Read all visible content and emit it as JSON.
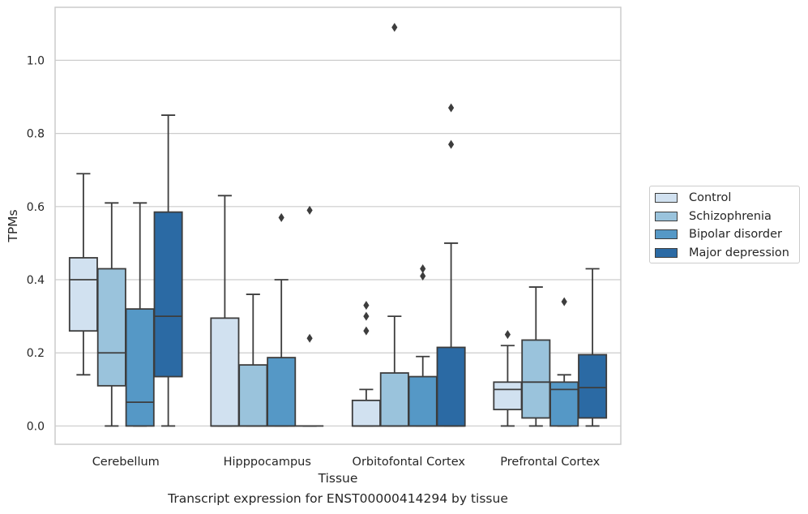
{
  "chart_data": {
    "type": "box",
    "xlabel": "Tissue",
    "ylabel": "TPMs",
    "caption": "Transcript expression for ENST00000414294 by tissue",
    "ylim": [
      -0.05,
      1.145
    ],
    "yticks": [
      0.0,
      0.2,
      0.4,
      0.6,
      0.8,
      1.0
    ],
    "ytick_labels": [
      "0.0",
      "0.2",
      "0.4",
      "0.6",
      "0.8",
      "1.0"
    ],
    "grid": "horizontal",
    "legend_position": "right",
    "categories": [
      "Cerebellum",
      "Hipppocampus",
      "Orbitofontal Cortex",
      "Prefrontal Cortex"
    ],
    "series": [
      {
        "name": "Control",
        "color": "#d1e1f0",
        "boxes": [
          {
            "whislo": 0.14,
            "q1": 0.26,
            "med": 0.4,
            "q3": 0.46,
            "whishi": 0.69,
            "fliers": []
          },
          {
            "whislo": 0.0,
            "q1": 0.0,
            "med": 0.0,
            "q3": 0.295,
            "whishi": 0.63,
            "fliers": []
          },
          {
            "whislo": 0.0,
            "q1": 0.0,
            "med": 0.0,
            "q3": 0.07,
            "whishi": 0.1,
            "fliers": [
              0.26,
              0.3,
              0.33
            ]
          },
          {
            "whislo": 0.0,
            "q1": 0.045,
            "med": 0.1,
            "q3": 0.12,
            "whishi": 0.22,
            "fliers": [
              0.25
            ]
          }
        ]
      },
      {
        "name": "Schizophrenia",
        "color": "#9ac3dc",
        "boxes": [
          {
            "whislo": 0.0,
            "q1": 0.11,
            "med": 0.2,
            "q3": 0.43,
            "whishi": 0.61,
            "fliers": []
          },
          {
            "whislo": 0.0,
            "q1": 0.0,
            "med": 0.0,
            "q3": 0.167,
            "whishi": 0.36,
            "fliers": []
          },
          {
            "whislo": 0.0,
            "q1": 0.0,
            "med": 0.0,
            "q3": 0.145,
            "whishi": 0.3,
            "fliers": [
              1.09
            ]
          },
          {
            "whislo": 0.0,
            "q1": 0.022,
            "med": 0.12,
            "q3": 0.235,
            "whishi": 0.38,
            "fliers": []
          }
        ]
      },
      {
        "name": "Bipolar disorder",
        "color": "#5598c6",
        "boxes": [
          {
            "whislo": 0.0,
            "q1": 0.0,
            "med": 0.065,
            "q3": 0.32,
            "whishi": 0.61,
            "fliers": []
          },
          {
            "whislo": 0.0,
            "q1": 0.0,
            "med": 0.0,
            "q3": 0.187,
            "whishi": 0.4,
            "fliers": [
              0.57
            ]
          },
          {
            "whislo": 0.0,
            "q1": 0.0,
            "med": 0.0,
            "q3": 0.135,
            "whishi": 0.19,
            "fliers": [
              0.41,
              0.43
            ]
          },
          {
            "whislo": 0.0,
            "q1": 0.0,
            "med": 0.1,
            "q3": 0.12,
            "whishi": 0.14,
            "fliers": [
              0.34
            ]
          }
        ]
      },
      {
        "name": "Major depression",
        "color": "#2b6aa4",
        "boxes": [
          {
            "whislo": 0.0,
            "q1": 0.135,
            "med": 0.3,
            "q3": 0.585,
            "whishi": 0.85,
            "fliers": []
          },
          {
            "whislo": 0.0,
            "q1": 0.0,
            "med": 0.0,
            "q3": 0.0,
            "whishi": 0.0,
            "fliers": [
              0.24,
              0.59
            ]
          },
          {
            "whislo": 0.0,
            "q1": 0.0,
            "med": 0.0,
            "q3": 0.215,
            "whishi": 0.5,
            "fliers": [
              0.77,
              0.87
            ]
          },
          {
            "whislo": 0.0,
            "q1": 0.022,
            "med": 0.105,
            "q3": 0.195,
            "whishi": 0.43,
            "fliers": []
          }
        ]
      }
    ]
  }
}
